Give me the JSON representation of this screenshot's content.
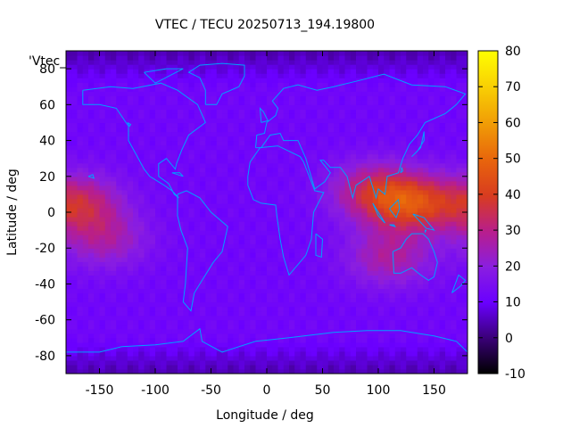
{
  "chart_data": {
    "type": "heatmap",
    "title": "VTEC / TECU 20250713_194.19800",
    "xlabel": "Longitude / deg",
    "ylabel": "Latitude / deg",
    "series_label": "'Vtec_",
    "xlim": [
      -180,
      180
    ],
    "ylim": [
      -90,
      90
    ],
    "x_ticks": [
      -150,
      -100,
      -50,
      0,
      50,
      100,
      150
    ],
    "y_ticks": [
      -80,
      -60,
      -40,
      -20,
      0,
      20,
      40,
      60,
      80
    ],
    "colorbar": {
      "range": [
        -10,
        80
      ],
      "ticks": [
        -10,
        0,
        10,
        20,
        30,
        40,
        50,
        60,
        70,
        80
      ],
      "colormap": "gnuplot-hot (black-purple-red-orange-yellow)"
    },
    "grid": false,
    "blobs": [
      {
        "lon": 130,
        "lat": 5,
        "peak_tec": 45
      },
      {
        "lon": 95,
        "lat": 12,
        "peak_tec": 35
      },
      {
        "lon": -170,
        "lat": 5,
        "peak_tec": 38
      },
      {
        "lon": 110,
        "lat": -25,
        "peak_tec": 30
      },
      {
        "lon": -145,
        "lat": -15,
        "peak_tec": 28
      }
    ],
    "background_tec": 12,
    "polar_minimum_tec": 4
  },
  "colors": {
    "coastline": "#00a0ff",
    "background": "#ffffff"
  }
}
